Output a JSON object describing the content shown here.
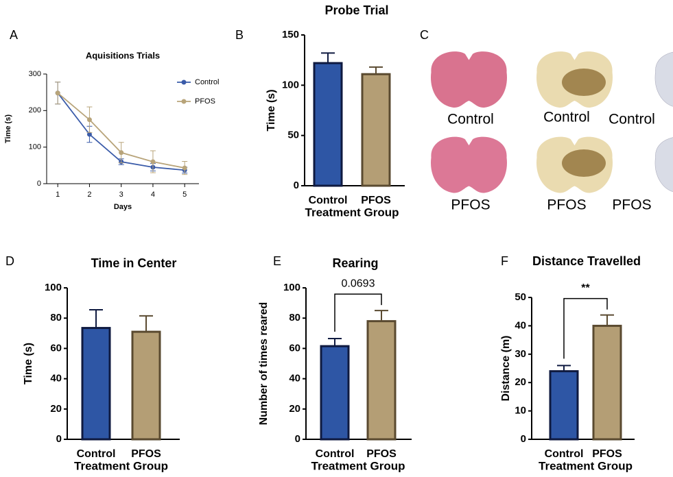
{
  "chart_data": [
    {
      "type": "line",
      "panel": "A",
      "title": "Aquisitions Trials",
      "xlabel": "Days",
      "ylabel": "Time (s)",
      "x": [
        1,
        2,
        3,
        4,
        5
      ],
      "xlim": [
        0.65,
        5.45
      ],
      "xticks": [
        1,
        2,
        3,
        4,
        5
      ],
      "ylim": [
        0,
        300
      ],
      "yticks": [
        0,
        100,
        200,
        300
      ],
      "legend": "upper right",
      "series": [
        {
          "name": "Control",
          "color": "#3a5ba9",
          "values": [
            248,
            135,
            60,
            45,
            37
          ],
          "errors": [
            30,
            22,
            8,
            10,
            8
          ]
        },
        {
          "name": "PFOS",
          "color": "#b8a47a",
          "values": [
            248,
            175,
            85,
            60,
            43
          ],
          "errors": [
            30,
            35,
            28,
            30,
            18
          ]
        }
      ]
    },
    {
      "type": "bar",
      "panel": "B",
      "title": "Probe Trial",
      "xlabel": "Treatment Group",
      "ylabel": "Time (s)",
      "categories": [
        "Control",
        "PFOS"
      ],
      "values": [
        122,
        111
      ],
      "errors": [
        10,
        7
      ],
      "colors": [
        "#2e56a5",
        "#b49e75"
      ],
      "edgecolors": [
        "#0f1a40",
        "#5a4a30"
      ],
      "ylim": [
        0,
        150
      ],
      "yticks": [
        0,
        50,
        100,
        150
      ]
    },
    {
      "type": "bar",
      "panel": "D",
      "title": "Time in Center",
      "xlabel": "Treatment Group",
      "ylabel": "Time (s)",
      "categories": [
        "Control",
        "PFOS"
      ],
      "values": [
        73.5,
        71
      ],
      "errors": [
        12,
        10.5
      ],
      "colors": [
        "#2e56a5",
        "#b49e75"
      ],
      "edgecolors": [
        "#0f1a40",
        "#5a4a30"
      ],
      "ylim": [
        0,
        100
      ],
      "yticks": [
        0,
        20,
        40,
        60,
        80,
        100
      ]
    },
    {
      "type": "bar",
      "panel": "E",
      "title": "Rearing",
      "xlabel": "Treatment Group",
      "ylabel": "Number of times reared",
      "categories": [
        "Control",
        "PFOS"
      ],
      "values": [
        61.5,
        78
      ],
      "errors": [
        5,
        7
      ],
      "annotation": "0.0693",
      "colors": [
        "#2e56a5",
        "#b49e75"
      ],
      "edgecolors": [
        "#0f1a40",
        "#5a4a30"
      ],
      "ylim": [
        0,
        100
      ],
      "yticks": [
        0,
        20,
        40,
        60,
        80,
        100
      ]
    },
    {
      "type": "bar",
      "panel": "F",
      "title": "Distance Travelled",
      "xlabel": "Treatment Group",
      "ylabel": "Distance (m)",
      "categories": [
        "Control",
        "PFOS"
      ],
      "values": [
        24,
        40
      ],
      "errors": [
        2,
        3.8
      ],
      "annotation": "**",
      "colors": [
        "#2e56a5",
        "#b49e75"
      ],
      "edgecolors": [
        "#0f1a40",
        "#5a4a30"
      ],
      "ylim": [
        0,
        50
      ],
      "yticks": [
        0,
        10,
        20,
        30,
        40,
        50
      ]
    }
  ],
  "images": {
    "panel": "C",
    "labels": [
      [
        "Control",
        "Control",
        "Control"
      ],
      [
        "PFOS",
        "PFOS",
        "PFOS"
      ]
    ]
  }
}
